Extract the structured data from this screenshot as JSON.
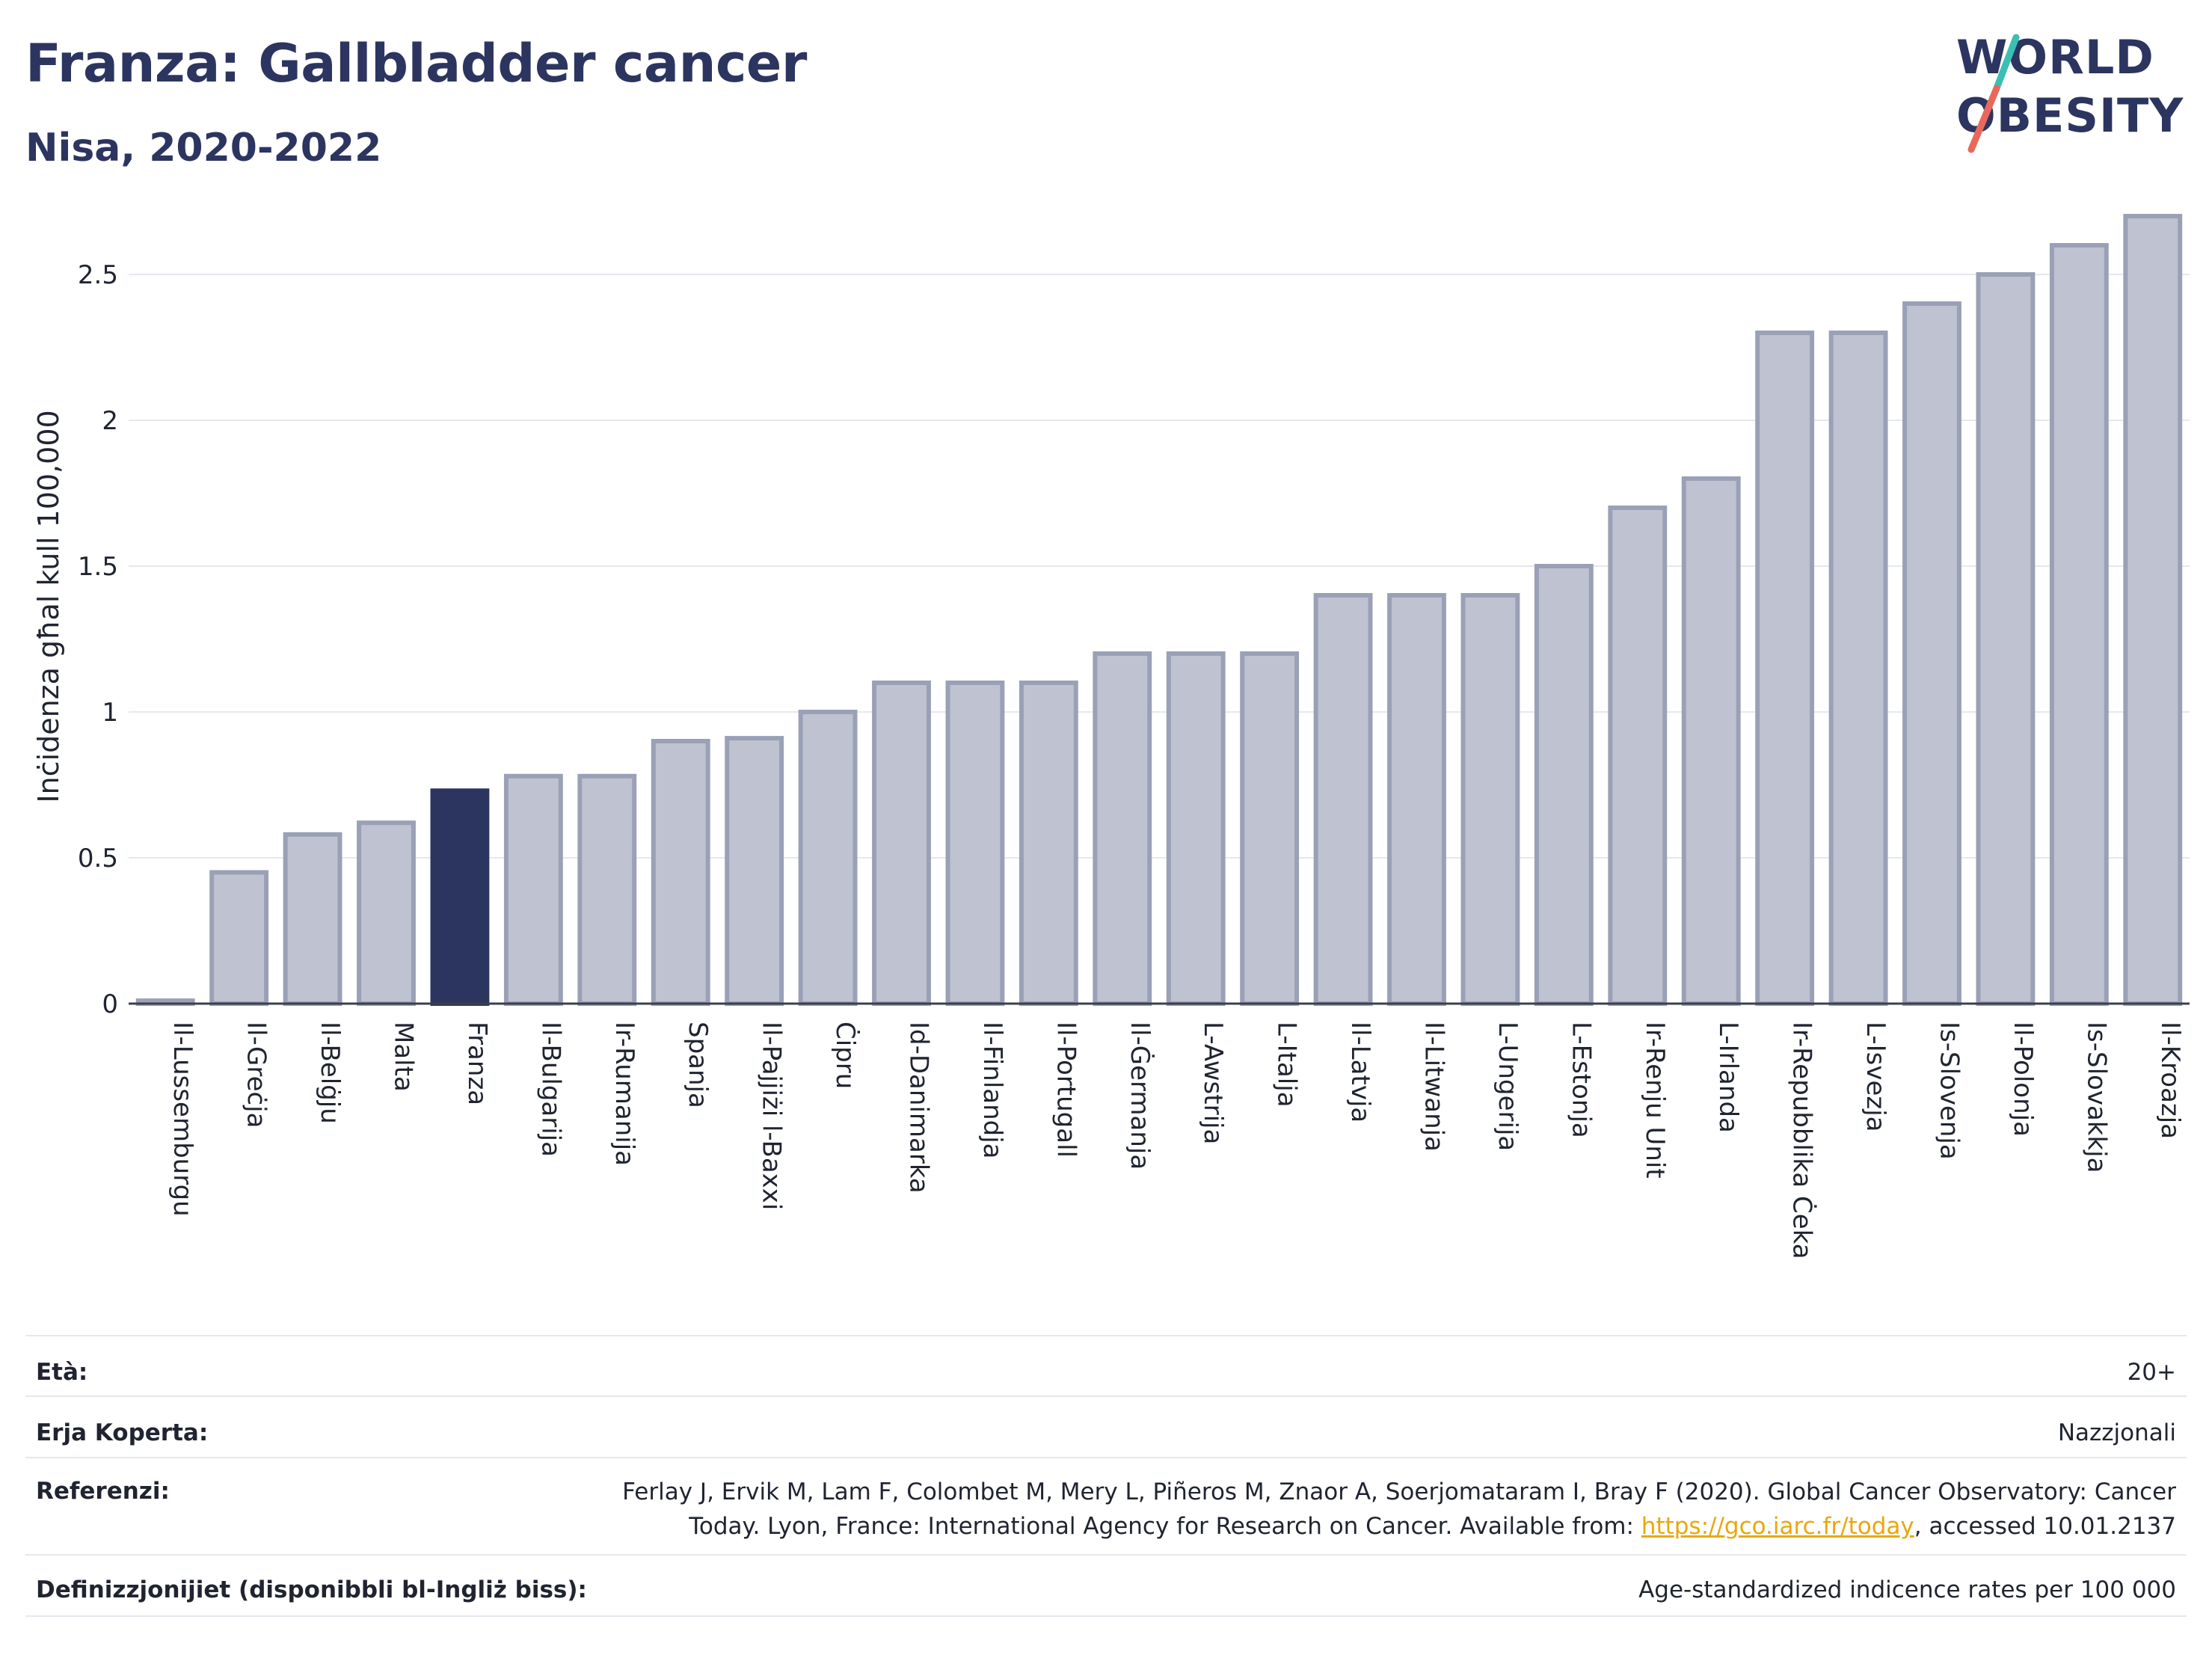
{
  "header": {
    "title": "Franza: Gallbladder cancer",
    "subtitle": "Nisa, 2020-2022"
  },
  "logo": {
    "line1": "WORLD",
    "line2": "OBESITY"
  },
  "colors": {
    "highlight": "#2c3560",
    "bar_fill": "#bfc3d1",
    "bar_stroke": "#9aa0b6",
    "grid": "#e6e8ef"
  },
  "chart_data": {
    "type": "bar",
    "title": "Franza: Gallbladder cancer",
    "ylabel": "Inċidenza għal kull 100,000",
    "xlabel": "",
    "ylim": [
      0,
      2.8
    ],
    "yticks": [
      0,
      0.5,
      1,
      1.5,
      2,
      2.5
    ],
    "ytick_labels": [
      "0",
      "0.5",
      "1",
      "1.5",
      "2",
      "2.5"
    ],
    "grid": true,
    "highlight": "Franza",
    "categories": [
      "Il-Lussemburgu",
      "Il-Greċja",
      "Il-Belġju",
      "Malta",
      "Franza",
      "Il-Bulgarija",
      "Ir-Rumanija",
      "Spanja",
      "Il-Pajjiżi l-Baxxi",
      "Ċipru",
      "Id-Danimarka",
      "Il-Finlandja",
      "Il-Portugall",
      "Il-Ġermanja",
      "L-Awstrija",
      "L-Italja",
      "Il-Latvja",
      "Il-Litwanja",
      "L-Ungerija",
      "L-Estonja",
      "Ir-Renju Unit",
      "L-Irlanda",
      "Ir-Repubblika Ċeka",
      "L-Isvezja",
      "Is-Slovenja",
      "Il-Polonja",
      "Is-Slovakkja",
      "Il-Kroazja"
    ],
    "values": [
      0.01,
      0.45,
      0.58,
      0.62,
      0.73,
      0.78,
      0.78,
      0.9,
      0.91,
      1.0,
      1.1,
      1.1,
      1.1,
      1.2,
      1.2,
      1.2,
      1.4,
      1.4,
      1.4,
      1.5,
      1.7,
      1.8,
      2.3,
      2.3,
      2.4,
      2.5,
      2.6,
      2.7
    ]
  },
  "info": {
    "age_label": "Età:",
    "age_value": "20+",
    "area_label": "Erja Koperta:",
    "area_value": "Nazzjonali",
    "ref_label": "Referenzi:",
    "ref_text_1": "Ferlay J, Ervik M, Lam F, Colombet M, Mery L, Piñeros M, Znaor A, Soerjomataram I, Bray F (2020). Global Cancer Observatory: Cancer",
    "ref_text_2": "Today. Lyon, France: International Agency for Research on Cancer. Available from: ",
    "ref_link": "https://gco.iarc.fr/today",
    "ref_text_3": ", accessed 10.01.2137",
    "def_label": "Definizzjonijiet (disponibbli bl-Ingliż biss):",
    "def_value": "Age-standardized indicence rates per 100 000"
  }
}
